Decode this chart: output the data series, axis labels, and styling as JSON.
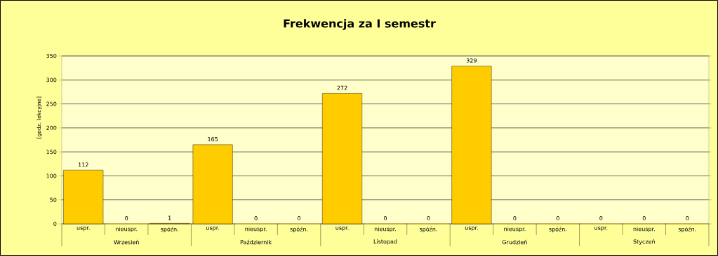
{
  "chart_data": {
    "type": "bar",
    "title": "Frekwencja za I semestr",
    "ylabel": "[godz. lekcyjne]",
    "categories": [
      "uspr.",
      "nieuspr.",
      "spóźn.",
      "uspr.",
      "nieuspr.",
      "spóźn.",
      "uspr.",
      "nieuspr.",
      "spóźn.",
      "uspr.",
      "nieuspr.",
      "spóźn.",
      "uspr.",
      "nieuspr.",
      "spóźn."
    ],
    "values": [
      112,
      0,
      1,
      165,
      0,
      0,
      272,
      0,
      0,
      329,
      0,
      0,
      0,
      0,
      0
    ],
    "color": "#ffcc00",
    "ylim": [
      0,
      350
    ],
    "yticks": [
      0,
      50,
      100,
      150,
      200,
      250,
      300,
      350
    ],
    "grid": "y",
    "data_labels": true,
    "annotations": [
      "Wrzesień",
      "Październik",
      "Listopad",
      "Grudzień",
      "Styczeń"
    ]
  }
}
